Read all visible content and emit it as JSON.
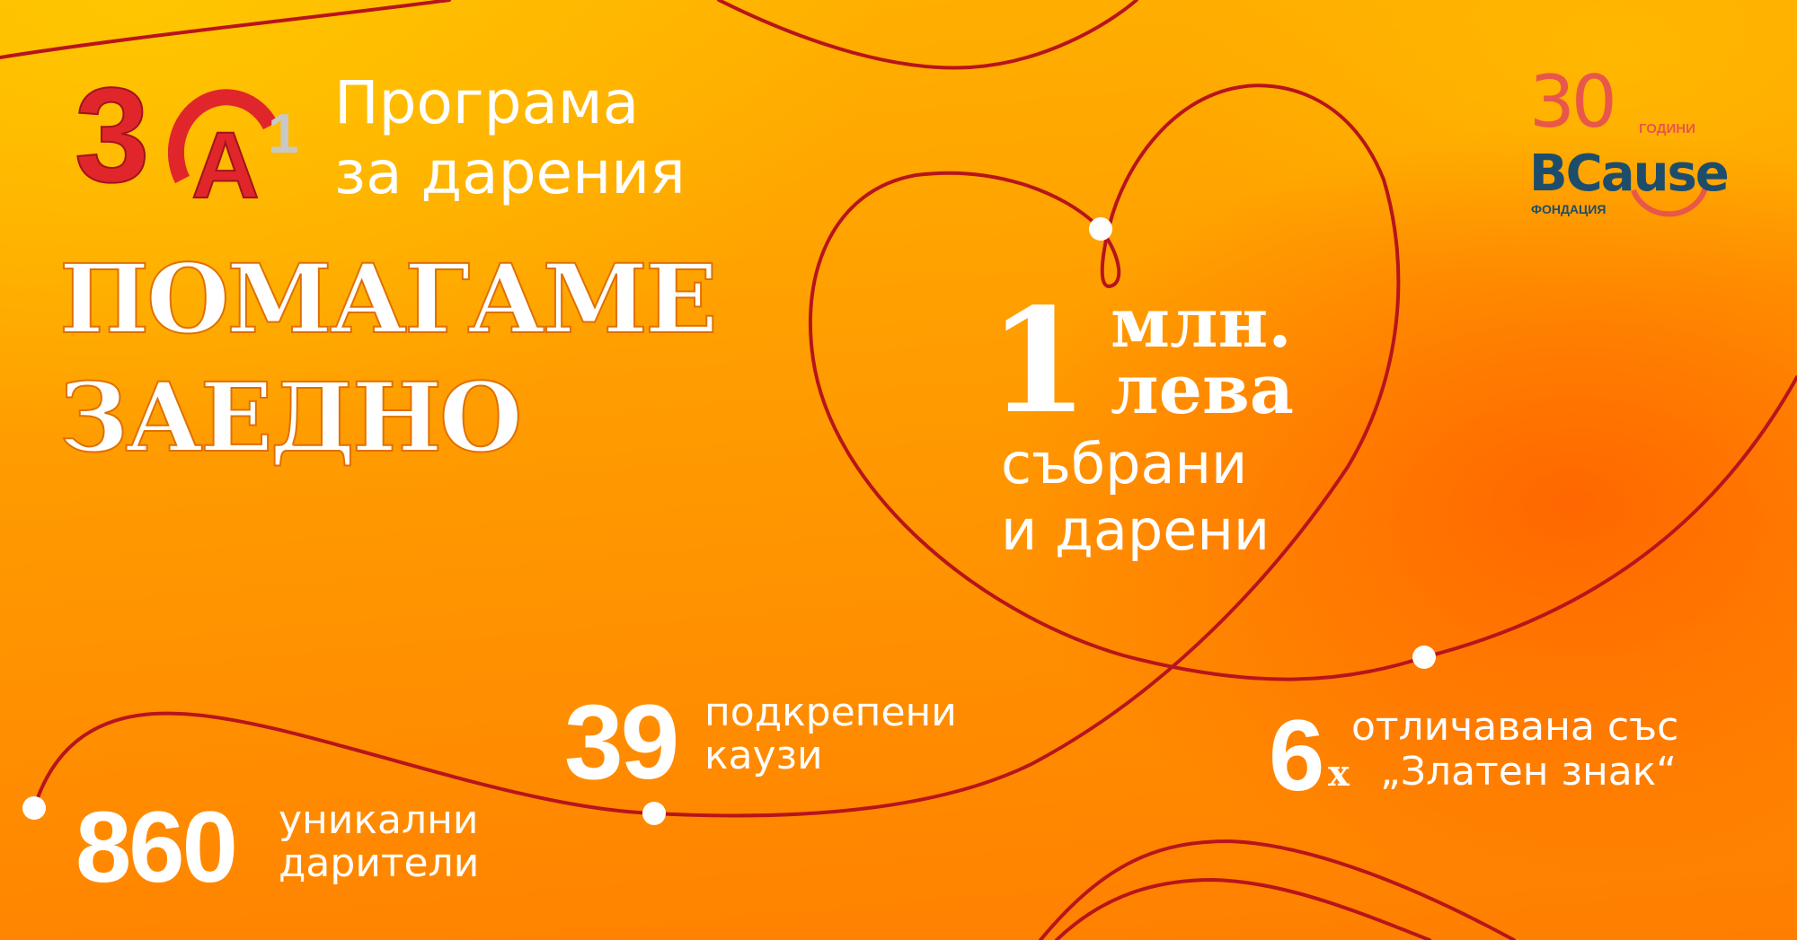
{
  "colors": {
    "background_top": "#FFB300",
    "background_bottom": "#FF7E00",
    "line": "#B8141C",
    "dot": "#FFFFFF",
    "text": "#FFFFFF",
    "bcause_coral": "#E8574A",
    "bcause_navy": "#1E4D6B",
    "a1_red": "#E0262B",
    "a1_grey": "#C8C8C8"
  },
  "a1_logo": {
    "text": "3OA1"
  },
  "program": {
    "line1": "Програма",
    "line2": "за дарения"
  },
  "headline": {
    "line1": "Помагаме",
    "line2": "заедно"
  },
  "bcause_logo": {
    "years": "30",
    "years_label": "ГОДИНИ",
    "name": "BCause",
    "subtitle": "ФОНДАЦИЯ"
  },
  "main_stat": {
    "number": "1",
    "unit1": "млн.",
    "unit2": "лева",
    "caption1": "събрани",
    "caption2": "и дарени"
  },
  "stats": [
    {
      "number": "860",
      "caption1": "уникални",
      "caption2": "дарители"
    },
    {
      "number": "39",
      "caption1": "подкрепени",
      "caption2": "каузи"
    },
    {
      "number": "6",
      "suffix": "x",
      "caption1": "отличавана със",
      "caption2": "„Златен знак“"
    }
  ]
}
